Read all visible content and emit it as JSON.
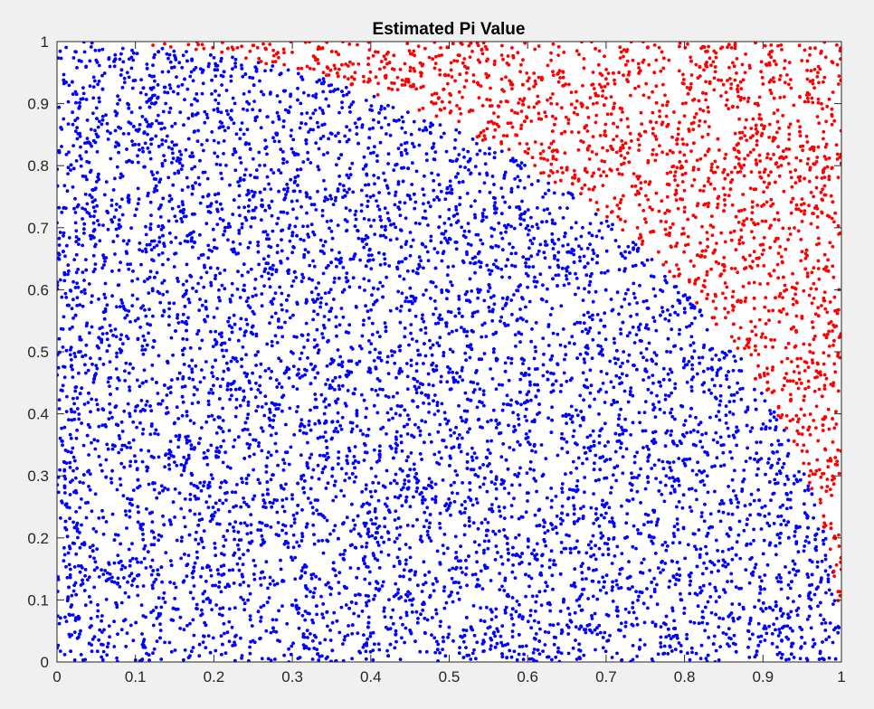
{
  "chart_data": {
    "type": "scatter",
    "title": "Estimated Pi Value",
    "xlabel": "",
    "ylabel": "",
    "xlim": [
      0,
      1
    ],
    "ylim": [
      0,
      1
    ],
    "x_ticks": [
      "0",
      "0.1",
      "0.2",
      "0.3",
      "0.4",
      "0.5",
      "0.6",
      "0.7",
      "0.8",
      "0.9",
      "1"
    ],
    "y_ticks": [
      "0",
      "0.1",
      "0.2",
      "0.3",
      "0.4",
      "0.5",
      "0.6",
      "0.7",
      "0.8",
      "0.9",
      "1"
    ],
    "grid": false,
    "legend": "none",
    "series": [
      {
        "color": "#0000ff",
        "description": "uniform random points inside the quarter circle x^2 + y^2 <= 1",
        "points": [
          [
            0.03,
            0.05
          ],
          [
            0.12,
            0.08
          ],
          [
            0.21,
            0.14
          ],
          [
            0.33,
            0.04
          ],
          [
            0.45,
            0.11
          ],
          [
            0.58,
            0.07
          ],
          [
            0.66,
            0.15
          ],
          [
            0.74,
            0.06
          ],
          [
            0.82,
            0.12
          ],
          [
            0.93,
            0.04
          ],
          [
            0.97,
            0.09
          ],
          [
            0.05,
            0.21
          ],
          [
            0.17,
            0.27
          ],
          [
            0.29,
            0.19
          ],
          [
            0.41,
            0.26
          ],
          [
            0.52,
            0.22
          ],
          [
            0.63,
            0.28
          ],
          [
            0.71,
            0.2
          ],
          [
            0.79,
            0.25
          ],
          [
            0.88,
            0.23
          ],
          [
            0.94,
            0.3
          ],
          [
            0.08,
            0.36
          ],
          [
            0.19,
            0.33
          ],
          [
            0.31,
            0.38
          ],
          [
            0.44,
            0.34
          ],
          [
            0.56,
            0.39
          ],
          [
            0.67,
            0.32
          ],
          [
            0.76,
            0.37
          ],
          [
            0.85,
            0.35
          ],
          [
            0.91,
            0.4
          ],
          [
            0.04,
            0.47
          ],
          [
            0.14,
            0.43
          ],
          [
            0.26,
            0.48
          ],
          [
            0.38,
            0.44
          ],
          [
            0.49,
            0.46
          ],
          [
            0.6,
            0.42
          ],
          [
            0.72,
            0.45
          ],
          [
            0.81,
            0.49
          ],
          [
            0.86,
            0.43
          ],
          [
            0.1,
            0.55
          ],
          [
            0.22,
            0.52
          ],
          [
            0.35,
            0.57
          ],
          [
            0.47,
            0.53
          ],
          [
            0.58,
            0.56
          ],
          [
            0.69,
            0.51
          ],
          [
            0.78,
            0.55
          ],
          [
            0.06,
            0.64
          ],
          [
            0.18,
            0.61
          ],
          [
            0.3,
            0.66
          ],
          [
            0.42,
            0.62
          ],
          [
            0.54,
            0.68
          ],
          [
            0.65,
            0.63
          ],
          [
            0.73,
            0.66
          ],
          [
            0.12,
            0.72
          ],
          [
            0.25,
            0.75
          ],
          [
            0.37,
            0.71
          ],
          [
            0.48,
            0.76
          ],
          [
            0.59,
            0.73
          ],
          [
            0.67,
            0.7
          ],
          [
            0.03,
            0.83
          ],
          [
            0.16,
            0.8
          ],
          [
            0.28,
            0.85
          ],
          [
            0.4,
            0.82
          ],
          [
            0.51,
            0.81
          ],
          [
            0.57,
            0.78
          ],
          [
            0.09,
            0.9
          ],
          [
            0.21,
            0.93
          ],
          [
            0.33,
            0.91
          ],
          [
            0.41,
            0.87
          ],
          [
            0.05,
            0.97
          ],
          [
            0.14,
            0.98
          ]
        ]
      },
      {
        "color": "#ff0000",
        "description": "uniform random points outside the quarter circle",
        "points": [
          [
            0.98,
            0.22
          ],
          [
            0.95,
            0.34
          ],
          [
            0.92,
            0.41
          ],
          [
            0.99,
            0.45
          ],
          [
            0.88,
            0.52
          ],
          [
            0.96,
            0.5
          ],
          [
            0.84,
            0.57
          ],
          [
            0.93,
            0.6
          ],
          [
            0.99,
            0.62
          ],
          [
            0.79,
            0.64
          ],
          [
            0.87,
            0.68
          ],
          [
            0.95,
            0.71
          ],
          [
            0.74,
            0.7
          ],
          [
            0.82,
            0.76
          ],
          [
            0.91,
            0.79
          ],
          [
            0.98,
            0.83
          ],
          [
            0.66,
            0.78
          ],
          [
            0.72,
            0.84
          ],
          [
            0.8,
            0.88
          ],
          [
            0.89,
            0.9
          ],
          [
            0.97,
            0.95
          ],
          [
            0.6,
            0.82
          ],
          [
            0.55,
            0.87
          ],
          [
            0.63,
            0.9
          ],
          [
            0.7,
            0.94
          ],
          [
            0.78,
            0.97
          ],
          [
            0.86,
            0.99
          ],
          [
            0.48,
            0.9
          ],
          [
            0.44,
            0.93
          ],
          [
            0.52,
            0.96
          ],
          [
            0.58,
            0.99
          ],
          [
            0.38,
            0.95
          ],
          [
            0.33,
            0.97
          ],
          [
            0.28,
            0.98
          ],
          [
            0.23,
            0.99
          ],
          [
            0.18,
            0.995
          ]
        ]
      }
    ]
  }
}
